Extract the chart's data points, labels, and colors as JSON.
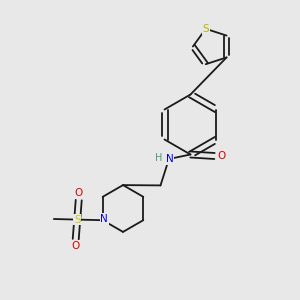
{
  "background_color": "#e8e8e8",
  "bond_color": "#1a1a1a",
  "atom_colors": {
    "S_thio": "#b8b800",
    "S_sulfonyl": "#cccc00",
    "N": "#0000ee",
    "O": "#dd0000",
    "C": "#1a1a1a",
    "H": "#4a9a7a"
  },
  "figsize": [
    3.0,
    3.0
  ],
  "dpi": 100
}
